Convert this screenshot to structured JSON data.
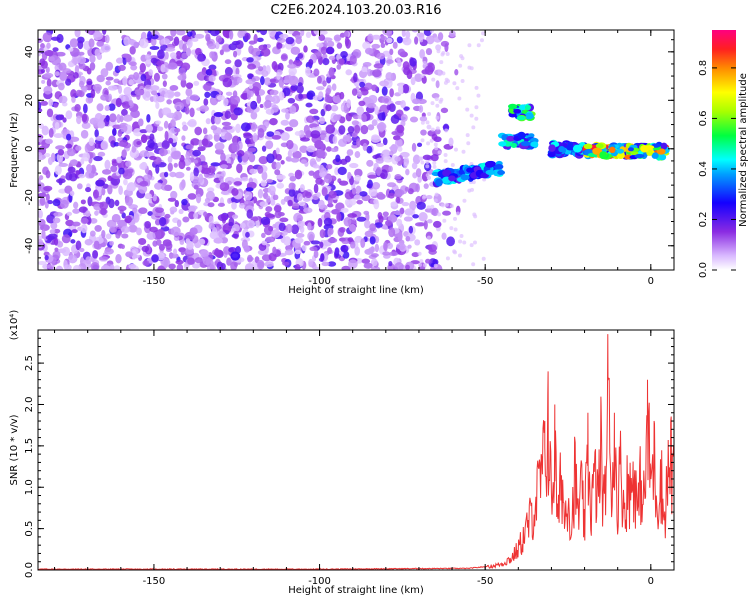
{
  "title": "C2E6.2024.103.20.03.R16",
  "chart_data": [
    {
      "type": "heatmap",
      "xlabel": "Height of straight line (km)",
      "ylabel": "Frequency (Hz)",
      "xlim": [
        -185,
        7
      ],
      "ylim": [
        -50,
        49
      ],
      "xticks": [
        -150,
        -100,
        -50,
        0
      ],
      "yticks": [
        -40,
        -20,
        0,
        20,
        40
      ],
      "colorbar": {
        "label": "Normalized spectral amplitude",
        "range": [
          0,
          0.95
        ],
        "ticks": [
          "0.0",
          "0.2",
          "0.4",
          "0.6",
          "0.8"
        ],
        "colors": [
          "#ffffff",
          "#b070ff",
          "#6000ff",
          "#0000ff",
          "#00c8ff",
          "#00ff60",
          "#c8ff00",
          "#ffc800",
          "#ff3000",
          "#ff0080"
        ]
      },
      "features": [
        {
          "name": "",
          "x_range": [
            -65,
            -45
          ],
          "y_center": -12,
          "peak": 0.45
        },
        {
          "name": "",
          "x_range": [
            -42,
            -36
          ],
          "y_center": 15,
          "peak": 0.6
        },
        {
          "name": "",
          "x_range": [
            -45,
            -35
          ],
          "y_center": 3,
          "peak": 0.5
        },
        {
          "name": "",
          "x_range": [
            -30,
            -20
          ],
          "y_center": 0,
          "peak": 0.45
        },
        {
          "name": "",
          "x_range": [
            -20,
            5
          ],
          "y_center": -1,
          "peak": 0.9
        }
      ]
    },
    {
      "type": "line",
      "xlabel": "Height of straight line (km)",
      "ylabel": "SNR (10 * v/v)",
      "y_multiplier": "(x10⁴)",
      "xlim": [
        -185,
        7
      ],
      "ylim": [
        0,
        2.9
      ],
      "xticks": [
        -150,
        -100,
        -50,
        0
      ],
      "yticks": [
        "0.0",
        "0.5",
        "1.0",
        "1.5",
        "2.0",
        "2.5"
      ],
      "series": [
        {
          "name": "",
          "color": "#ee3333",
          "x": [
            -185,
            -150,
            -100,
            -55,
            -50,
            -45,
            -42,
            -40,
            -38,
            -36,
            -34,
            -32,
            -31,
            -30,
            -29,
            -28,
            -27,
            -26,
            -25,
            -24,
            -23,
            -22,
            -21,
            -20,
            -19,
            -18,
            -17,
            -16,
            -15,
            -14,
            -13,
            -12,
            -11,
            -10,
            -9,
            -8,
            -7,
            -6,
            -5,
            -4,
            -3,
            -2,
            -1,
            0,
            1,
            2,
            3,
            4,
            5,
            6,
            7
          ],
          "y": [
            0.01,
            0.01,
            0.01,
            0.02,
            0.04,
            0.1,
            0.2,
            0.35,
            0.6,
            0.9,
            1.3,
            1.8,
            2.4,
            1.1,
            2.0,
            0.7,
            1.7,
            0.8,
            1.4,
            0.6,
            1.6,
            0.9,
            1.3,
            0.7,
            1.9,
            1.0,
            1.5,
            1.2,
            2.0,
            0.9,
            2.85,
            1.5,
            1.9,
            1.2,
            1.7,
            1.0,
            1.4,
            1.3,
            1.7,
            0.9,
            1.5,
            1.1,
            2.3,
            1.5,
            1.8,
            1.1,
            1.6,
            0.8,
            1.5,
            1.8,
            1.5
          ]
        }
      ]
    }
  ]
}
